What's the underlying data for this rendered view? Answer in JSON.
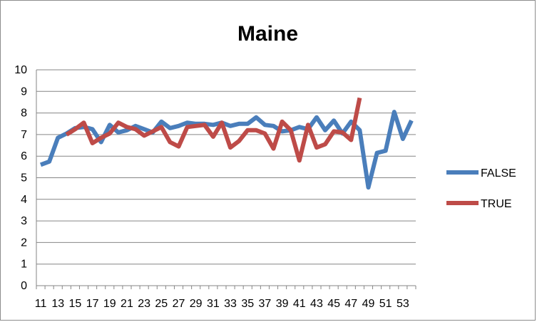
{
  "chart_data": {
    "type": "line",
    "title": "Maine",
    "xlabel": "",
    "ylabel": "",
    "x": [
      11,
      12,
      13,
      14,
      15,
      16,
      17,
      18,
      19,
      20,
      21,
      22,
      23,
      24,
      25,
      26,
      27,
      28,
      29,
      30,
      31,
      32,
      33,
      34,
      35,
      36,
      37,
      38,
      39,
      40,
      41,
      42,
      43,
      44,
      45,
      46,
      47,
      48,
      49,
      50,
      51,
      52,
      53,
      54
    ],
    "x_tick_labels": [
      "11",
      "13",
      "15",
      "17",
      "19",
      "21",
      "23",
      "25",
      "27",
      "29",
      "31",
      "33",
      "35",
      "37",
      "39",
      "41",
      "43",
      "45",
      "47",
      "49",
      "51",
      "53"
    ],
    "y_ticks": [
      0,
      1,
      2,
      3,
      4,
      5,
      6,
      7,
      8,
      9,
      10
    ],
    "ylim": [
      0,
      10
    ],
    "grid": "horizontal",
    "legend_position": "right",
    "series": [
      {
        "name": "FALSE",
        "color": "#4a7ebb",
        "values": [
          5.6,
          5.75,
          6.85,
          7.05,
          7.3,
          7.35,
          7.25,
          6.65,
          7.45,
          7.1,
          7.2,
          7.4,
          7.25,
          7.1,
          7.6,
          7.3,
          7.4,
          7.55,
          7.5,
          7.5,
          7.45,
          7.55,
          7.4,
          7.5,
          7.5,
          7.8,
          7.45,
          7.4,
          7.15,
          7.2,
          7.35,
          7.25,
          7.8,
          7.2,
          7.65,
          7.05,
          7.6,
          7.2,
          4.55,
          6.15,
          6.25,
          8.05,
          6.8,
          7.65
        ]
      },
      {
        "name": "TRUE",
        "color": "#be4b48",
        "values": [
          null,
          null,
          null,
          7.0,
          7.25,
          7.55,
          6.6,
          6.85,
          7.05,
          7.55,
          7.35,
          7.25,
          6.95,
          7.15,
          7.35,
          6.65,
          6.45,
          7.35,
          7.4,
          7.45,
          6.9,
          7.55,
          6.4,
          6.7,
          7.2,
          7.2,
          7.05,
          6.35,
          7.6,
          7.2,
          5.8,
          7.45,
          6.4,
          6.55,
          7.15,
          7.1,
          6.75,
          8.7,
          null,
          null,
          null,
          null,
          null,
          null
        ]
      }
    ]
  }
}
